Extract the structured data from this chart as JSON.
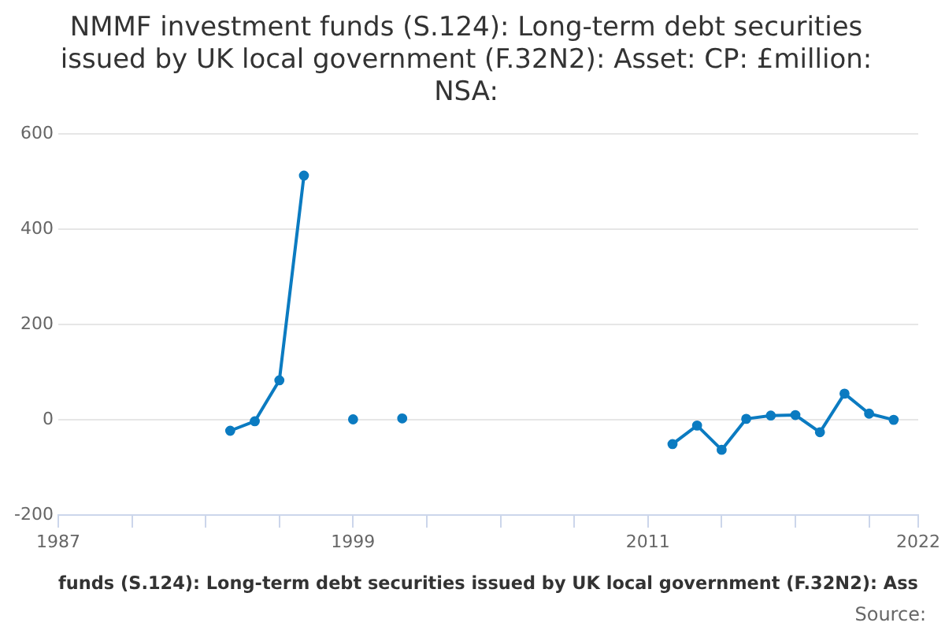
{
  "chart_data": {
    "type": "line",
    "title": "NMMF investment funds (S.124): Long-term debt securities issued by UK local government (F.32N2): Asset: CP: £million: NSA:",
    "xlabel": "funds (S.124): Long-term debt securities issued by UK local government (F.32N2): Ass",
    "annotations": [
      "Source:"
    ],
    "x": [
      1994,
      1995,
      1996,
      1997,
      1998,
      1999,
      2000,
      2001,
      2002,
      2003,
      2004,
      2005,
      2006,
      2007,
      2008,
      2009,
      2010,
      2011,
      2012,
      2013,
      2014,
      2015,
      2016,
      2017,
      2018,
      2019,
      2020,
      2021
    ],
    "series": [
      {
        "color": "#0b7bc1",
        "values": [
          -23,
          -3,
          83,
          513,
          null,
          1,
          null,
          3,
          null,
          null,
          null,
          null,
          null,
          null,
          null,
          null,
          null,
          null,
          -51,
          -12,
          -63,
          2,
          9,
          10,
          -26,
          55,
          13,
          0
        ]
      }
    ],
    "xlim": [
      1987,
      2022
    ],
    "xticks": [
      1987,
      {
        "value": 1990,
        "label": null
      },
      {
        "value": 1993,
        "label": null
      },
      {
        "value": 1996,
        "label": null
      },
      1999,
      {
        "value": 2002,
        "label": null
      },
      {
        "value": 2005,
        "label": null
      },
      {
        "value": 2008,
        "label": null
      },
      2011,
      {
        "value": 2014,
        "label": null
      },
      {
        "value": 2017,
        "label": null
      },
      {
        "value": 2020,
        "label": null
      },
      2022
    ],
    "ylim": [
      -200,
      600
    ],
    "yticks": [
      -200,
      0,
      200,
      400,
      600
    ],
    "grid": "y",
    "legend": false,
    "marker": "circle",
    "line_style": "solid"
  }
}
